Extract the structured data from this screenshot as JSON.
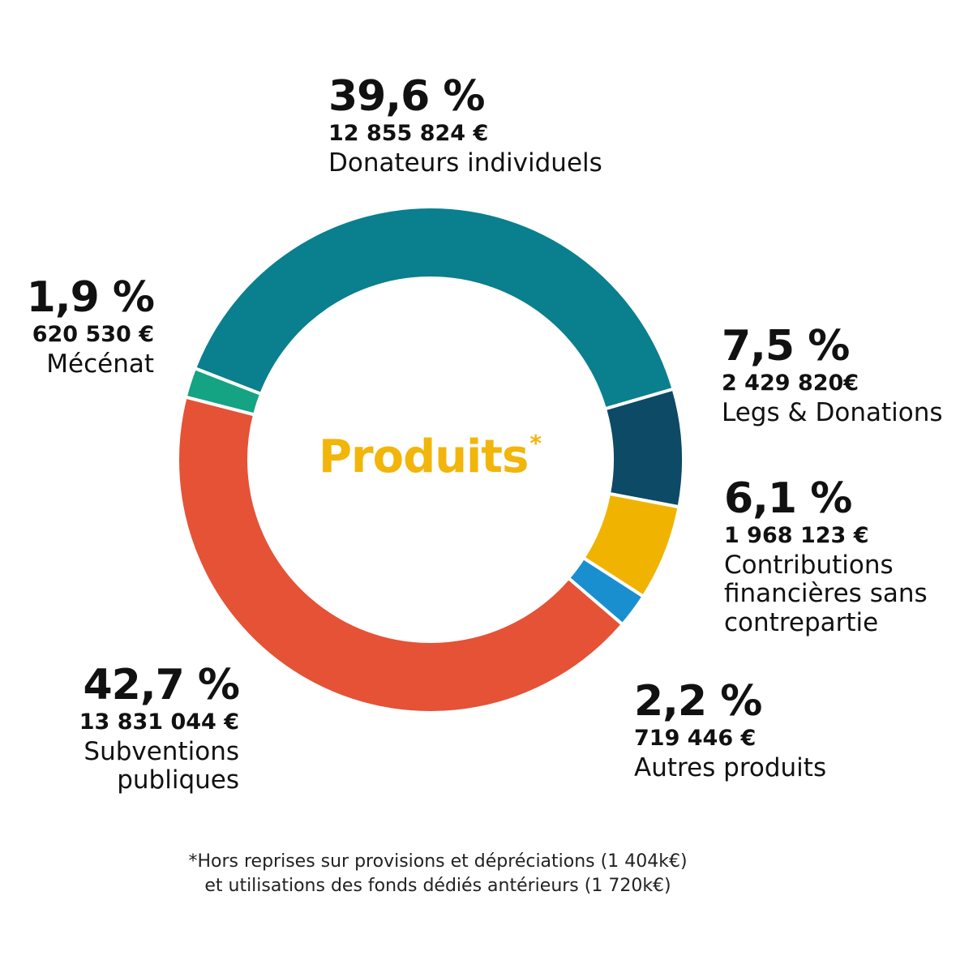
{
  "chart_data": {
    "type": "pie",
    "title": "Produits",
    "title_mark": "*",
    "slices": [
      {
        "pct_label": "39,6 %",
        "value": 39.6,
        "amount": "12 855 824 €",
        "name": "Donateurs individuels",
        "color": "#0a7f8e"
      },
      {
        "pct_label": "7,5 %",
        "value": 7.5,
        "amount": "2 429 820€",
        "name": "Legs & Donations",
        "color": "#0c4a66"
      },
      {
        "pct_label": "6,1 %",
        "value": 6.1,
        "amount": "1 968 123 €",
        "name": "Contributions financières sans contrepartie",
        "color": "#f0b400"
      },
      {
        "pct_label": "2,2 %",
        "value": 2.2,
        "amount": "719 446 €",
        "name": "Autres produits",
        "color": "#1a8fd0"
      },
      {
        "pct_label": "42,7 %",
        "value": 42.7,
        "amount": "13 831 044 €",
        "name": "Subventions publiques",
        "color": "#e55236"
      },
      {
        "pct_label": "1,9 %",
        "value": 1.9,
        "amount": "620 530 €",
        "name": "Mécénat",
        "color": "#14a383"
      }
    ]
  },
  "footnote": {
    "line1": "*Hors reprises sur provisions et dépréciations (1 404k€)",
    "line2": "et utilisations des fonds dédiés antérieurs (1 720k€)"
  },
  "colors": {
    "title": "#f2b50a",
    "text": "#111111"
  }
}
